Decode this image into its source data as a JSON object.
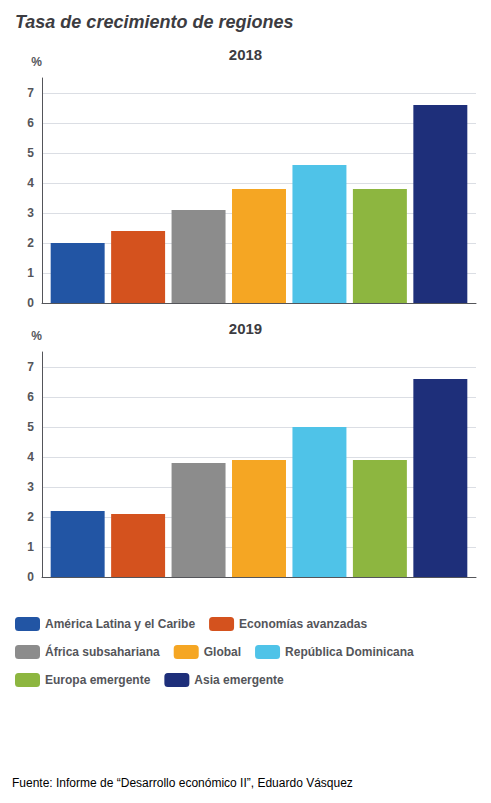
{
  "chart_data": [
    {
      "type": "bar",
      "title": "Tasa de crecimiento de regiones",
      "subtitle": "2018",
      "categories": [
        null
      ],
      "series": [
        {
          "name": "América Latina y el Caribe",
          "color": "#2255a4",
          "values": [
            2.0
          ]
        },
        {
          "name": "Economías avanzadas",
          "color": "#d4521e",
          "values": [
            2.4
          ]
        },
        {
          "name": "África subsahariana",
          "color": "#8c8c8c",
          "values": [
            3.1
          ]
        },
        {
          "name": "Global",
          "color": "#f5a623",
          "values": [
            3.8
          ]
        },
        {
          "name": "República Dominicana",
          "color": "#4fc3e8",
          "values": [
            4.6
          ]
        },
        {
          "name": "Europa emergente",
          "color": "#8db640",
          "values": [
            3.8
          ]
        },
        {
          "name": "Asia emergente",
          "color": "#1e2f7a",
          "values": [
            6.6
          ]
        }
      ],
      "ylabel": "%",
      "ylim": [
        0,
        7.5
      ],
      "yticks": [
        0,
        1,
        2,
        3,
        4,
        5,
        6,
        7
      ],
      "grid": true,
      "tick_labels": "y"
    },
    {
      "type": "bar",
      "subtitle": "2019",
      "categories": [
        null
      ],
      "series": [
        {
          "name": "América Latina y el Caribe",
          "color": "#2255a4",
          "values": [
            2.2
          ]
        },
        {
          "name": "Economías avanzadas",
          "color": "#d4521e",
          "values": [
            2.1
          ]
        },
        {
          "name": "África subsahariana",
          "color": "#8c8c8c",
          "values": [
            3.8
          ]
        },
        {
          "name": "Global",
          "color": "#f5a623",
          "values": [
            3.9
          ]
        },
        {
          "name": "República Dominicana",
          "color": "#4fc3e8",
          "values": [
            5.0
          ]
        },
        {
          "name": "Europa emergente",
          "color": "#8db640",
          "values": [
            3.9
          ]
        },
        {
          "name": "Asia emergente",
          "color": "#1e2f7a",
          "values": [
            6.6
          ]
        }
      ],
      "ylabel": "%",
      "ylim": [
        0,
        7.5
      ],
      "yticks": [
        0,
        1,
        2,
        3,
        4,
        5,
        6,
        7
      ],
      "grid": true,
      "tick_labels": "y",
      "legend": "bottom",
      "annotation": "Fuente: Informe de “Desarrollo económico II”, Eduardo Vásquez"
    }
  ]
}
